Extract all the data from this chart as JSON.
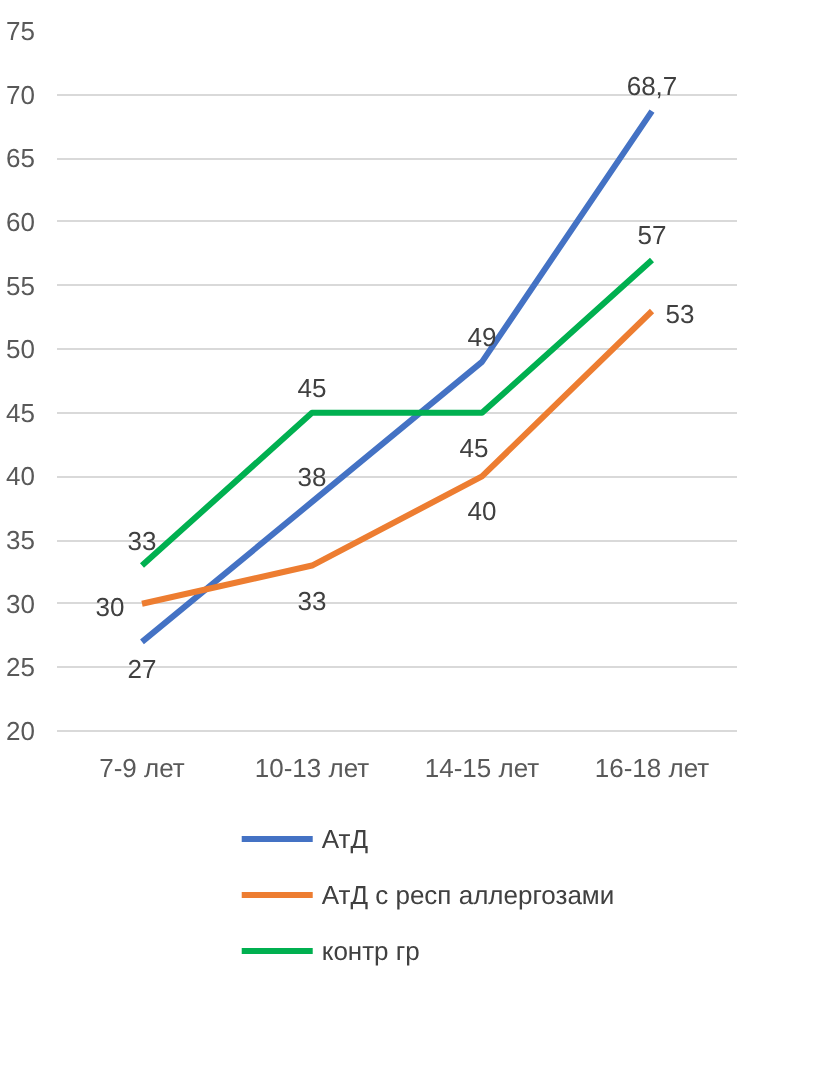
{
  "chart_data": {
    "type": "line",
    "categories": [
      "7-9 лет",
      "10-13 лет",
      "14-15 лет",
      "16-18 лет"
    ],
    "series": [
      {
        "name": "АтД",
        "color": "#4472c4",
        "values": [
          27,
          38,
          49,
          68.7
        ],
        "value_labels": [
          "27",
          "38",
          "49",
          "68,7"
        ]
      },
      {
        "name": "АтД с респ аллергозами",
        "color": "#ed7d31",
        "values": [
          30,
          33,
          40,
          53
        ],
        "value_labels": [
          "30",
          "33",
          "40",
          "53"
        ]
      },
      {
        "name": "контр гр",
        "color": "#00b050",
        "values": [
          33,
          45,
          45,
          57
        ],
        "value_labels": [
          "33",
          "45",
          "45",
          "57"
        ]
      }
    ],
    "ylim": [
      20,
      75
    ],
    "yticks": [
      20,
      25,
      30,
      35,
      40,
      45,
      50,
      55,
      60,
      65,
      70,
      75
    ],
    "grid": "y",
    "legend": "bottom",
    "marker": "none",
    "line_style": "solid"
  }
}
